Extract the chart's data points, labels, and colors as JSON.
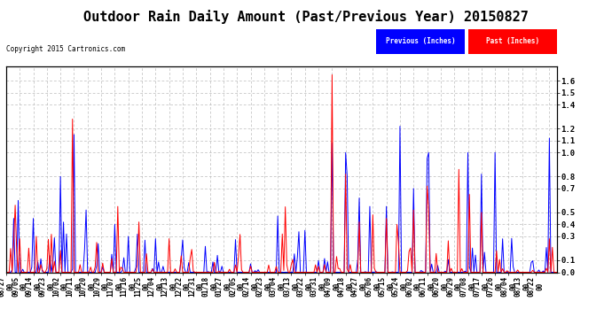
{
  "title": "Outdoor Rain Daily Amount (Past/Previous Year) 20150827",
  "copyright": "Copyright 2015 Cartronics.com",
  "legend_labels": [
    "Previous (Inches)",
    "Past (Inches)"
  ],
  "line_color_previous": "blue",
  "line_color_past": "red",
  "yticks": [
    0.0,
    0.1,
    0.3,
    0.4,
    0.5,
    0.7,
    0.8,
    1.0,
    1.1,
    1.2,
    1.4,
    1.5,
    1.6
  ],
  "ylim": [
    0.0,
    1.72
  ],
  "background_color": "#ffffff",
  "grid_color": "#bbbbbb",
  "title_fontsize": 11,
  "tick_fontsize": 6.5,
  "n_points": 366,
  "xtick_labels": [
    "08/27\n00",
    "09/05\n00",
    "09/14\n00",
    "09/23\n00",
    "10/02\n00",
    "10/11\n00",
    "10/20\n00",
    "10/29\n00",
    "11/07\n00",
    "11/16\n00",
    "11/25\n00",
    "12/04\n00",
    "12/13\n00",
    "12/22\n00",
    "12/31\n00",
    "01/18\n00",
    "01/27\n00",
    "02/05\n00",
    "02/14\n00",
    "02/23\n00",
    "03/04\n00",
    "03/13\n00",
    "03/22\n00",
    "03/31\n00",
    "04/09\n00",
    "04/18\n00",
    "04/27\n00",
    "05/06\n00",
    "05/15\n00",
    "05/24\n00",
    "06/02\n00",
    "06/11\n00",
    "06/20\n00",
    "06/29\n00",
    "07/08\n00",
    "07/17\n00",
    "07/26\n00",
    "08/04\n00",
    "08/13\n00",
    "08/22\n00"
  ],
  "xtick_interval": 9
}
